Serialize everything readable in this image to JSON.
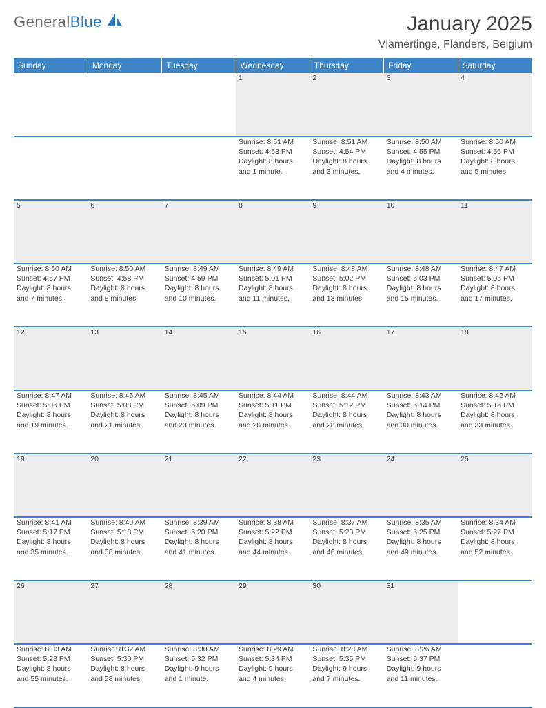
{
  "brand": {
    "text1": "General",
    "text2": "Blue",
    "logo_color": "#2e7bbf",
    "text1_color": "#6a6a6a"
  },
  "header": {
    "title": "January 2025",
    "location": "Vlamertinge, Flanders, Belgium"
  },
  "colors": {
    "header_bg": "#3d85c6",
    "header_fg": "#ffffff",
    "daynum_bg": "#ededed",
    "rule": "#3d85c6",
    "body_text": "#404040"
  },
  "weekdays": [
    "Sunday",
    "Monday",
    "Tuesday",
    "Wednesday",
    "Thursday",
    "Friday",
    "Saturday"
  ],
  "weeks": [
    [
      null,
      null,
      null,
      {
        "n": "1",
        "sunrise": "8:51 AM",
        "sunset": "4:53 PM",
        "daylight": "8 hours and 1 minute."
      },
      {
        "n": "2",
        "sunrise": "8:51 AM",
        "sunset": "4:54 PM",
        "daylight": "8 hours and 3 minutes."
      },
      {
        "n": "3",
        "sunrise": "8:50 AM",
        "sunset": "4:55 PM",
        "daylight": "8 hours and 4 minutes."
      },
      {
        "n": "4",
        "sunrise": "8:50 AM",
        "sunset": "4:56 PM",
        "daylight": "8 hours and 5 minutes."
      }
    ],
    [
      {
        "n": "5",
        "sunrise": "8:50 AM",
        "sunset": "4:57 PM",
        "daylight": "8 hours and 7 minutes."
      },
      {
        "n": "6",
        "sunrise": "8:50 AM",
        "sunset": "4:58 PM",
        "daylight": "8 hours and 8 minutes."
      },
      {
        "n": "7",
        "sunrise": "8:49 AM",
        "sunset": "4:59 PM",
        "daylight": "8 hours and 10 minutes."
      },
      {
        "n": "8",
        "sunrise": "8:49 AM",
        "sunset": "5:01 PM",
        "daylight": "8 hours and 11 minutes."
      },
      {
        "n": "9",
        "sunrise": "8:48 AM",
        "sunset": "5:02 PM",
        "daylight": "8 hours and 13 minutes."
      },
      {
        "n": "10",
        "sunrise": "8:48 AM",
        "sunset": "5:03 PM",
        "daylight": "8 hours and 15 minutes."
      },
      {
        "n": "11",
        "sunrise": "8:47 AM",
        "sunset": "5:05 PM",
        "daylight": "8 hours and 17 minutes."
      }
    ],
    [
      {
        "n": "12",
        "sunrise": "8:47 AM",
        "sunset": "5:06 PM",
        "daylight": "8 hours and 19 minutes."
      },
      {
        "n": "13",
        "sunrise": "8:46 AM",
        "sunset": "5:08 PM",
        "daylight": "8 hours and 21 minutes."
      },
      {
        "n": "14",
        "sunrise": "8:45 AM",
        "sunset": "5:09 PM",
        "daylight": "8 hours and 23 minutes."
      },
      {
        "n": "15",
        "sunrise": "8:44 AM",
        "sunset": "5:11 PM",
        "daylight": "8 hours and 26 minutes."
      },
      {
        "n": "16",
        "sunrise": "8:44 AM",
        "sunset": "5:12 PM",
        "daylight": "8 hours and 28 minutes."
      },
      {
        "n": "17",
        "sunrise": "8:43 AM",
        "sunset": "5:14 PM",
        "daylight": "8 hours and 30 minutes."
      },
      {
        "n": "18",
        "sunrise": "8:42 AM",
        "sunset": "5:15 PM",
        "daylight": "8 hours and 33 minutes."
      }
    ],
    [
      {
        "n": "19",
        "sunrise": "8:41 AM",
        "sunset": "5:17 PM",
        "daylight": "8 hours and 35 minutes."
      },
      {
        "n": "20",
        "sunrise": "8:40 AM",
        "sunset": "5:18 PM",
        "daylight": "8 hours and 38 minutes."
      },
      {
        "n": "21",
        "sunrise": "8:39 AM",
        "sunset": "5:20 PM",
        "daylight": "8 hours and 41 minutes."
      },
      {
        "n": "22",
        "sunrise": "8:38 AM",
        "sunset": "5:22 PM",
        "daylight": "8 hours and 44 minutes."
      },
      {
        "n": "23",
        "sunrise": "8:37 AM",
        "sunset": "5:23 PM",
        "daylight": "8 hours and 46 minutes."
      },
      {
        "n": "24",
        "sunrise": "8:35 AM",
        "sunset": "5:25 PM",
        "daylight": "8 hours and 49 minutes."
      },
      {
        "n": "25",
        "sunrise": "8:34 AM",
        "sunset": "5:27 PM",
        "daylight": "8 hours and 52 minutes."
      }
    ],
    [
      {
        "n": "26",
        "sunrise": "8:33 AM",
        "sunset": "5:28 PM",
        "daylight": "8 hours and 55 minutes."
      },
      {
        "n": "27",
        "sunrise": "8:32 AM",
        "sunset": "5:30 PM",
        "daylight": "8 hours and 58 minutes."
      },
      {
        "n": "28",
        "sunrise": "8:30 AM",
        "sunset": "5:32 PM",
        "daylight": "9 hours and 1 minute."
      },
      {
        "n": "29",
        "sunrise": "8:29 AM",
        "sunset": "5:34 PM",
        "daylight": "9 hours and 4 minutes."
      },
      {
        "n": "30",
        "sunrise": "8:28 AM",
        "sunset": "5:35 PM",
        "daylight": "9 hours and 7 minutes."
      },
      {
        "n": "31",
        "sunrise": "8:26 AM",
        "sunset": "5:37 PM",
        "daylight": "9 hours and 11 minutes."
      },
      null
    ]
  ],
  "labels": {
    "sunrise": "Sunrise:",
    "sunset": "Sunset:",
    "daylight": "Daylight:"
  }
}
